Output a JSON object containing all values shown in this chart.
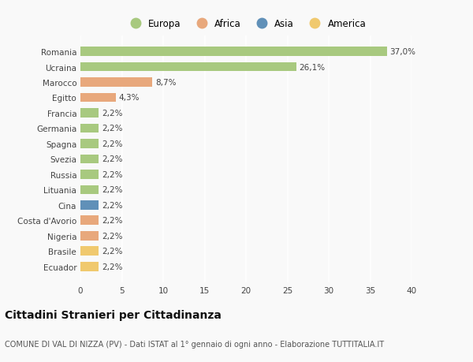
{
  "countries": [
    "Romania",
    "Ucraina",
    "Marocco",
    "Egitto",
    "Francia",
    "Germania",
    "Spagna",
    "Svezia",
    "Russia",
    "Lituania",
    "Cina",
    "Costa d'Avorio",
    "Nigeria",
    "Brasile",
    "Ecuador"
  ],
  "values": [
    37.0,
    26.1,
    8.7,
    4.3,
    2.2,
    2.2,
    2.2,
    2.2,
    2.2,
    2.2,
    2.2,
    2.2,
    2.2,
    2.2,
    2.2
  ],
  "labels": [
    "37,0%",
    "26,1%",
    "8,7%",
    "4,3%",
    "2,2%",
    "2,2%",
    "2,2%",
    "2,2%",
    "2,2%",
    "2,2%",
    "2,2%",
    "2,2%",
    "2,2%",
    "2,2%",
    "2,2%"
  ],
  "continents": [
    "Europa",
    "Europa",
    "Africa",
    "Africa",
    "Europa",
    "Europa",
    "Europa",
    "Europa",
    "Europa",
    "Europa",
    "Asia",
    "Africa",
    "Africa",
    "America",
    "America"
  ],
  "continent_colors": {
    "Europa": "#a8c97f",
    "Africa": "#e8a87c",
    "Asia": "#6090b8",
    "America": "#f0c96e"
  },
  "legend_order": [
    "Europa",
    "Africa",
    "Asia",
    "America"
  ],
  "xlim": [
    0,
    40
  ],
  "xticks": [
    0,
    5,
    10,
    15,
    20,
    25,
    30,
    35,
    40
  ],
  "title": "Cittadini Stranieri per Cittadinanza",
  "subtitle": "COMUNE DI VAL DI NIZZA (PV) - Dati ISTAT al 1° gennaio di ogni anno - Elaborazione TUTTITALIA.IT",
  "background_color": "#f9f9f9",
  "grid_color": "#ffffff",
  "bar_height": 0.6,
  "label_fontsize": 7.5,
  "title_fontsize": 10,
  "subtitle_fontsize": 7,
  "tick_fontsize": 7.5,
  "legend_fontsize": 8.5
}
